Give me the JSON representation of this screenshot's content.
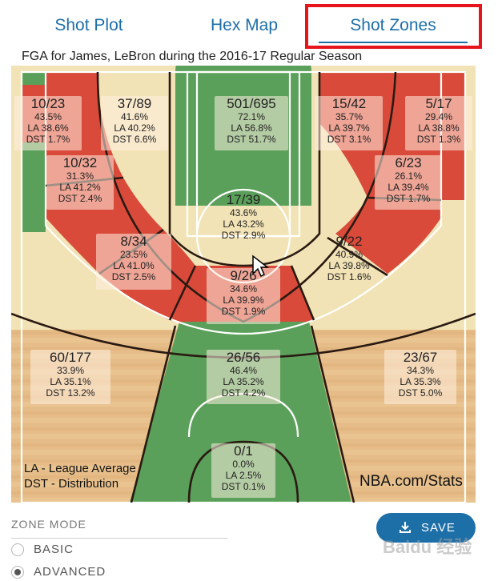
{
  "tabs": [
    {
      "label": "Shot Plot"
    },
    {
      "label": "Hex Map"
    },
    {
      "label": "Shot Zones",
      "active": true
    }
  ],
  "court_title": "FGA for James, LeBron during the 2016-17 Regular Season",
  "colors": {
    "accent": "#1d6fa8",
    "highlight_border": "#e8141c",
    "zone_red": "#d94a3a",
    "zone_green": "#5aa05a",
    "zone_yellow": "#f3e6b8",
    "court_wood": "#e8c08c"
  },
  "zones": [
    {
      "id": "left-corner",
      "fraction": "10/23",
      "pct": "43.5%",
      "la": "LA 38.6%",
      "dst": "DST 1.7%"
    },
    {
      "id": "left-baseline-mid",
      "fraction": "37/89",
      "pct": "41.6%",
      "la": "LA 40.2%",
      "dst": "DST 6.6%"
    },
    {
      "id": "restricted-area",
      "fraction": "501/695",
      "pct": "72.1%",
      "la": "LA 56.8%",
      "dst": "DST 51.7%"
    },
    {
      "id": "right-baseline-mid",
      "fraction": "15/42",
      "pct": "35.7%",
      "la": "LA 39.7%",
      "dst": "DST 3.1%"
    },
    {
      "id": "right-corner",
      "fraction": "5/17",
      "pct": "29.4%",
      "la": "LA 38.8%",
      "dst": "DST 1.3%"
    },
    {
      "id": "left-short-mid",
      "fraction": "10/32",
      "pct": "31.3%",
      "la": "LA 41.2%",
      "dst": "DST 2.4%"
    },
    {
      "id": "right-short-mid",
      "fraction": "6/23",
      "pct": "26.1%",
      "la": "LA 39.4%",
      "dst": "DST 1.7%"
    },
    {
      "id": "paint-non-ra",
      "fraction": "17/39",
      "pct": "43.6%",
      "la": "LA 43.2%",
      "dst": "DST 2.9%"
    },
    {
      "id": "left-elbow",
      "fraction": "8/34",
      "pct": "23.5%",
      "la": "LA 41.0%",
      "dst": "DST 2.5%"
    },
    {
      "id": "right-elbow",
      "fraction": "9/22",
      "pct": "40.9%",
      "la": "LA 39.8%",
      "dst": "DST 1.6%"
    },
    {
      "id": "top-key-mid",
      "fraction": "9/26",
      "pct": "34.6%",
      "la": "LA 39.9%",
      "dst": "DST 1.9%"
    },
    {
      "id": "left-wing-three",
      "fraction": "60/177",
      "pct": "33.9%",
      "la": "LA 35.1%",
      "dst": "DST 13.2%"
    },
    {
      "id": "top-three",
      "fraction": "26/56",
      "pct": "46.4%",
      "la": "LA 35.2%",
      "dst": "DST 4.2%"
    },
    {
      "id": "right-wing-three",
      "fraction": "23/67",
      "pct": "34.3%",
      "la": "LA 35.3%",
      "dst": "DST 5.0%"
    },
    {
      "id": "backcourt",
      "fraction": "0/1",
      "pct": "0.0%",
      "la": "LA 2.5%",
      "dst": "DST 0.1%"
    }
  ],
  "legend": {
    "la": "LA - League Average",
    "dst": "DST - Distribution"
  },
  "watermark": "NBA.com/Stats",
  "zone_mode": {
    "title": "ZONE MODE",
    "options": [
      {
        "label": "BASIC",
        "checked": false
      },
      {
        "label": "ADVANCED",
        "checked": true
      }
    ]
  },
  "save_label": "SAVE",
  "baidu_watermark": "Baidu 经验",
  "icons": {
    "save": "download-icon",
    "cursor": "mouse-pointer-icon"
  }
}
